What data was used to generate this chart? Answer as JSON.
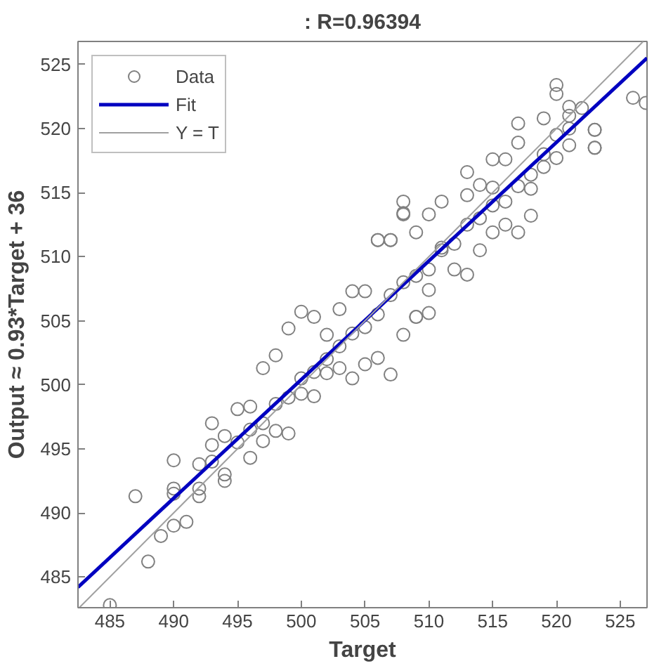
{
  "chart_data": {
    "type": "scatter",
    "title": ": R=0.96394",
    "xlabel": "Target",
    "ylabel": "Output ≈ 0.93*Target + 36",
    "xlim": [
      482.5,
      527.1
    ],
    "ylim": [
      482.6,
      526.8
    ],
    "xticks": [
      485,
      490,
      495,
      500,
      505,
      510,
      515,
      520,
      525
    ],
    "yticks": [
      485,
      490,
      495,
      500,
      505,
      510,
      515,
      520,
      525
    ],
    "legend": "top left",
    "series": [
      {
        "name": "Data",
        "marker": "circle",
        "color": "#808080",
        "x": [
          485,
          487,
          488,
          489,
          490,
          490,
          491,
          492,
          494,
          490,
          490,
          492,
          494,
          493,
          493,
          495,
          496,
          496,
          497,
          497,
          498,
          498,
          499,
          499,
          500,
          500,
          501,
          501,
          502,
          502,
          503,
          503,
          504,
          504,
          505,
          505,
          506,
          506,
          507,
          507,
          508,
          508,
          509,
          510,
          520,
          520,
          521,
          522,
          523,
          523,
          521,
          520,
          519,
          519,
          517,
          517,
          517,
          516,
          516,
          518,
          518,
          515,
          515,
          515,
          514,
          514,
          513,
          513,
          513,
          512,
          511,
          511,
          510,
          510,
          509,
          509,
          508,
          508,
          507,
          506,
          526,
          527,
          521,
          523,
          523,
          500,
          503,
          506,
          508,
          511,
          513,
          515,
          498,
          495,
          497,
          504,
          509,
          512,
          517,
          519,
          514,
          510,
          507,
          505,
          502,
          501,
          499,
          496,
          493,
          492,
          516,
          518,
          520,
          521,
          494
        ],
        "values": [
          482.8,
          491.3,
          486.2,
          488.2,
          489,
          491.5,
          489.3,
          491.3,
          492.5,
          494.1,
          491.9,
          491.9,
          493,
          497,
          495.3,
          498.1,
          494.3,
          498.3,
          501.3,
          495.6,
          502.3,
          496.4,
          496.2,
          504.4,
          505.7,
          499.3,
          505.3,
          499.1,
          503.9,
          500.9,
          505.9,
          501.3,
          507.3,
          500.5,
          501.6,
          507.3,
          511.3,
          502.1,
          500.8,
          511.3,
          513.3,
          503.9,
          505.3,
          505.6,
          523.4,
          522.7,
          521.7,
          521.6,
          519.9,
          518.5,
          518.7,
          517.7,
          520.8,
          517,
          520.4,
          518.9,
          511.9,
          517.6,
          514.3,
          516.4,
          515.3,
          517.6,
          515.4,
          511.9,
          515.6,
          510.5,
          516.6,
          508.6,
          514.8,
          509,
          514.3,
          510.7,
          513.3,
          507.4,
          511.9,
          505.3,
          514.3,
          513.4,
          511.3,
          511.3,
          522.4,
          522,
          521,
          518.5,
          519.9,
          500.5,
          503,
          505.5,
          508,
          510.5,
          512.5,
          514,
          498.5,
          495.5,
          497,
          504,
          508.5,
          511,
          515.5,
          518,
          513,
          509,
          507,
          504.5,
          502,
          501,
          499,
          496.5,
          494,
          493.8,
          512.5,
          513.2,
          519.5,
          520,
          496
        ]
      },
      {
        "name": "Fit",
        "type": "line",
        "color": "#0000c0",
        "line_style": "solid",
        "x": [
          482.5,
          527.1
        ],
        "values": [
          484.2,
          525.5
        ]
      },
      {
        "name": "Y = T",
        "type": "line",
        "color": "#a0a0a0",
        "line_style": "solid",
        "x": [
          482.6,
          526.8
        ],
        "values": [
          482.6,
          526.8
        ]
      }
    ]
  }
}
